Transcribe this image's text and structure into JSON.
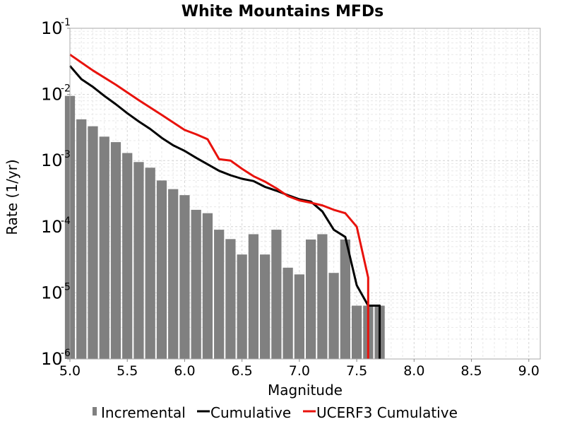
{
  "chart_data": {
    "type": "bar",
    "title": "White Mountains MFDs",
    "xlabel": "Magnitude",
    "ylabel": "Rate (1/yr)",
    "xlim": [
      5.0,
      9.1
    ],
    "ylim": [
      1e-06,
      0.1
    ],
    "yscale": "log",
    "grid": true,
    "legend_position": "bottom",
    "xticks": [
      "5.0",
      "5.5",
      "6.0",
      "6.5",
      "7.0",
      "7.5",
      "8.0",
      "8.5",
      "9.0"
    ],
    "yticks": [
      {
        "base": "10",
        "exp": "-6",
        "value": 1e-06
      },
      {
        "base": "10",
        "exp": "-5",
        "value": 1e-05
      },
      {
        "base": "10",
        "exp": "-4",
        "value": 0.0001
      },
      {
        "base": "10",
        "exp": "-3",
        "value": 0.001
      },
      {
        "base": "10",
        "exp": "-2",
        "value": 0.01
      },
      {
        "base": "10",
        "exp": "-1",
        "value": 0.1
      }
    ],
    "series": [
      {
        "name": "Incremental",
        "kind": "bar",
        "color": "#808080",
        "x": [
          5.0,
          5.1,
          5.2,
          5.3,
          5.4,
          5.5,
          5.6,
          5.7,
          5.8,
          5.9,
          6.0,
          6.1,
          6.2,
          6.3,
          6.4,
          6.5,
          6.6,
          6.7,
          6.8,
          6.9,
          7.0,
          7.1,
          7.2,
          7.3,
          7.4,
          7.5,
          7.6,
          7.7
        ],
        "values": [
          0.0095,
          0.0042,
          0.0033,
          0.0023,
          0.0019,
          0.0013,
          0.00095,
          0.00078,
          0.0005,
          0.00037,
          0.0003,
          0.00018,
          0.00016,
          9e-05,
          6.5e-05,
          3.8e-05,
          7.7e-05,
          3.8e-05,
          9e-05,
          2.4e-05,
          1.9e-05,
          6.4e-05,
          7.7e-05,
          2e-05,
          6.4e-05,
          6.4e-06,
          6.4e-06,
          6.4e-06
        ]
      },
      {
        "name": "Cumulative",
        "kind": "line",
        "color": "#000000",
        "x": [
          5.0,
          5.1,
          5.2,
          5.3,
          5.4,
          5.5,
          5.6,
          5.7,
          5.8,
          5.9,
          6.0,
          6.1,
          6.2,
          6.3,
          6.4,
          6.5,
          6.6,
          6.7,
          6.8,
          6.9,
          7.0,
          7.1,
          7.2,
          7.3,
          7.4,
          7.5,
          7.6,
          7.7,
          7.7
        ],
        "values": [
          0.027,
          0.017,
          0.013,
          0.0095,
          0.0071,
          0.0052,
          0.0039,
          0.003,
          0.0022,
          0.0017,
          0.0014,
          0.0011,
          0.00088,
          0.0007,
          0.0006,
          0.00053,
          0.00049,
          0.0004,
          0.00035,
          0.0003,
          0.00026,
          0.00024,
          0.00017,
          9e-05,
          7e-05,
          1.3e-05,
          6.4e-06,
          6.4e-06,
          1e-06
        ]
      },
      {
        "name": "UCERF3 Cumulative",
        "kind": "line",
        "color": "#e8120c",
        "x": [
          5.0,
          5.2,
          5.4,
          5.6,
          5.8,
          6.0,
          6.1,
          6.2,
          6.3,
          6.4,
          6.5,
          6.6,
          6.7,
          6.8,
          6.9,
          7.0,
          7.1,
          7.2,
          7.3,
          7.4,
          7.5,
          7.6,
          7.6
        ],
        "values": [
          0.04,
          0.023,
          0.014,
          0.0082,
          0.0049,
          0.0029,
          0.0025,
          0.0021,
          0.00105,
          0.001,
          0.00075,
          0.00058,
          0.00048,
          0.00038,
          0.00029,
          0.00025,
          0.00023,
          0.00021,
          0.00018,
          0.00016,
          0.0001,
          1.7e-05,
          1e-06
        ]
      }
    ]
  }
}
